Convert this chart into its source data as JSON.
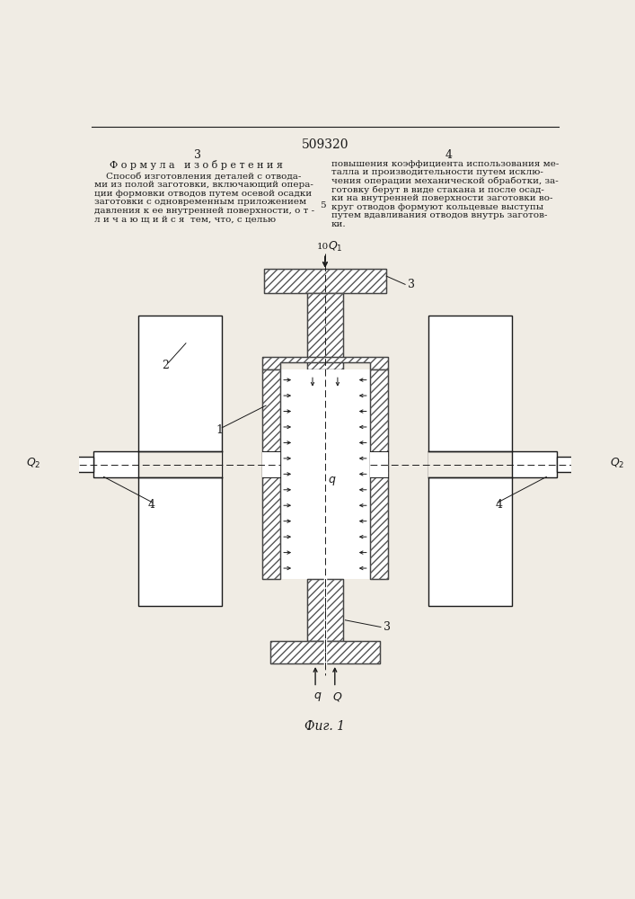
{
  "page_number": "509320",
  "col_left": "3",
  "col_right": "4",
  "header_title": "Ф о р м у л а   и з о б р е т е н и я",
  "text_left_lines": [
    "    Способ изготовления деталей с отвода-",
    "ми из полой заготовки, включающий опера-",
    "ции формовки отводов путем осевой осадки",
    "заготовки с одновременным приложением",
    "давления к ее внутренней поверхности, о т -",
    "л и ч а ю щ и й с я  тем, что, с целью"
  ],
  "text_right_lines": [
    "повышения коэффициента использования ме-",
    "талла и производительности путем исклю-",
    "чения операции механической обработки, за-",
    "готовку берут в виде стакана и после осад-",
    "ки на внутренней поверхности заготовки во-",
    "круг отводов формуют кольцевые выступы",
    "путем вдавливания отводов внутрь заготов-",
    "ки."
  ],
  "line_number_5": "5",
  "line_number_10": "10",
  "fig_label": "Фиг. 1",
  "bg_color": "#f0ece4",
  "line_color": "#1a1a1a",
  "hatch_color": "#555555"
}
